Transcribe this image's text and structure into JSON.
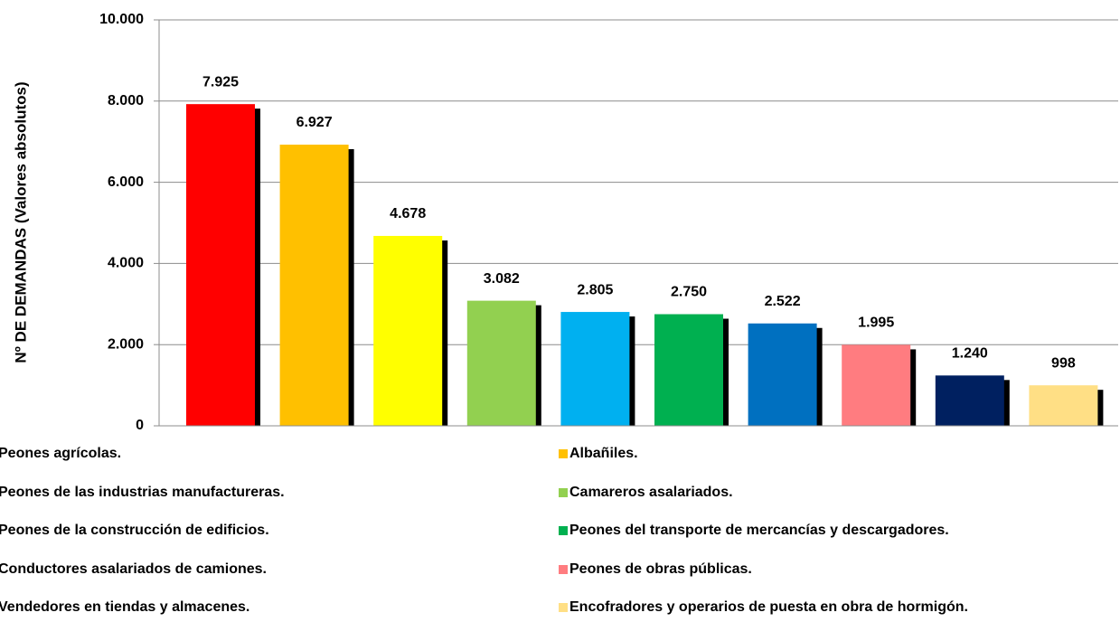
{
  "chart_data": {
    "type": "bar",
    "y_axis_label": "Nº DE DEMANDAS (Valores absolutos)",
    "categories": [
      "Peones agrícolas.",
      "Albañiles.",
      "Peones de las industrias manufactureras.",
      "Camareros asalariados.",
      "Peones de la construcción de edificios.",
      "Peones del transporte de mercancías y descargadores.",
      "Conductores asalariados de camiones.",
      "Peones de obras públicas.",
      "Vendedores en tiendas y almacenes.",
      "Encofradores y operarios de puesta en obra de hormigón."
    ],
    "values": [
      7925,
      6927,
      4678,
      3082,
      2805,
      2750,
      2522,
      1995,
      1240,
      998
    ],
    "value_labels": [
      "7.925",
      "6.927",
      "4.678",
      "3.082",
      "2.805",
      "2.750",
      "2.522",
      "1.995",
      "1.240",
      "998"
    ],
    "colors": [
      "#ff0000",
      "#ffc000",
      "#ffff00",
      "#92d050",
      "#00b0f0",
      "#00b050",
      "#0070c0",
      "#ff7c80",
      "#002060",
      "#ffdf85"
    ],
    "ylim": [
      0,
      10000
    ],
    "yticks": [
      0,
      {
        "value": 2000,
        "label": "2.000"
      },
      {
        "value": 4000,
        "label": "4.000"
      },
      {
        "value": 6000,
        "label": "6.000"
      },
      {
        "value": 8000,
        "label": "8.000"
      },
      {
        "value": 10000,
        "label": "10.000"
      }
    ],
    "grid": true,
    "legend": "bottom"
  }
}
